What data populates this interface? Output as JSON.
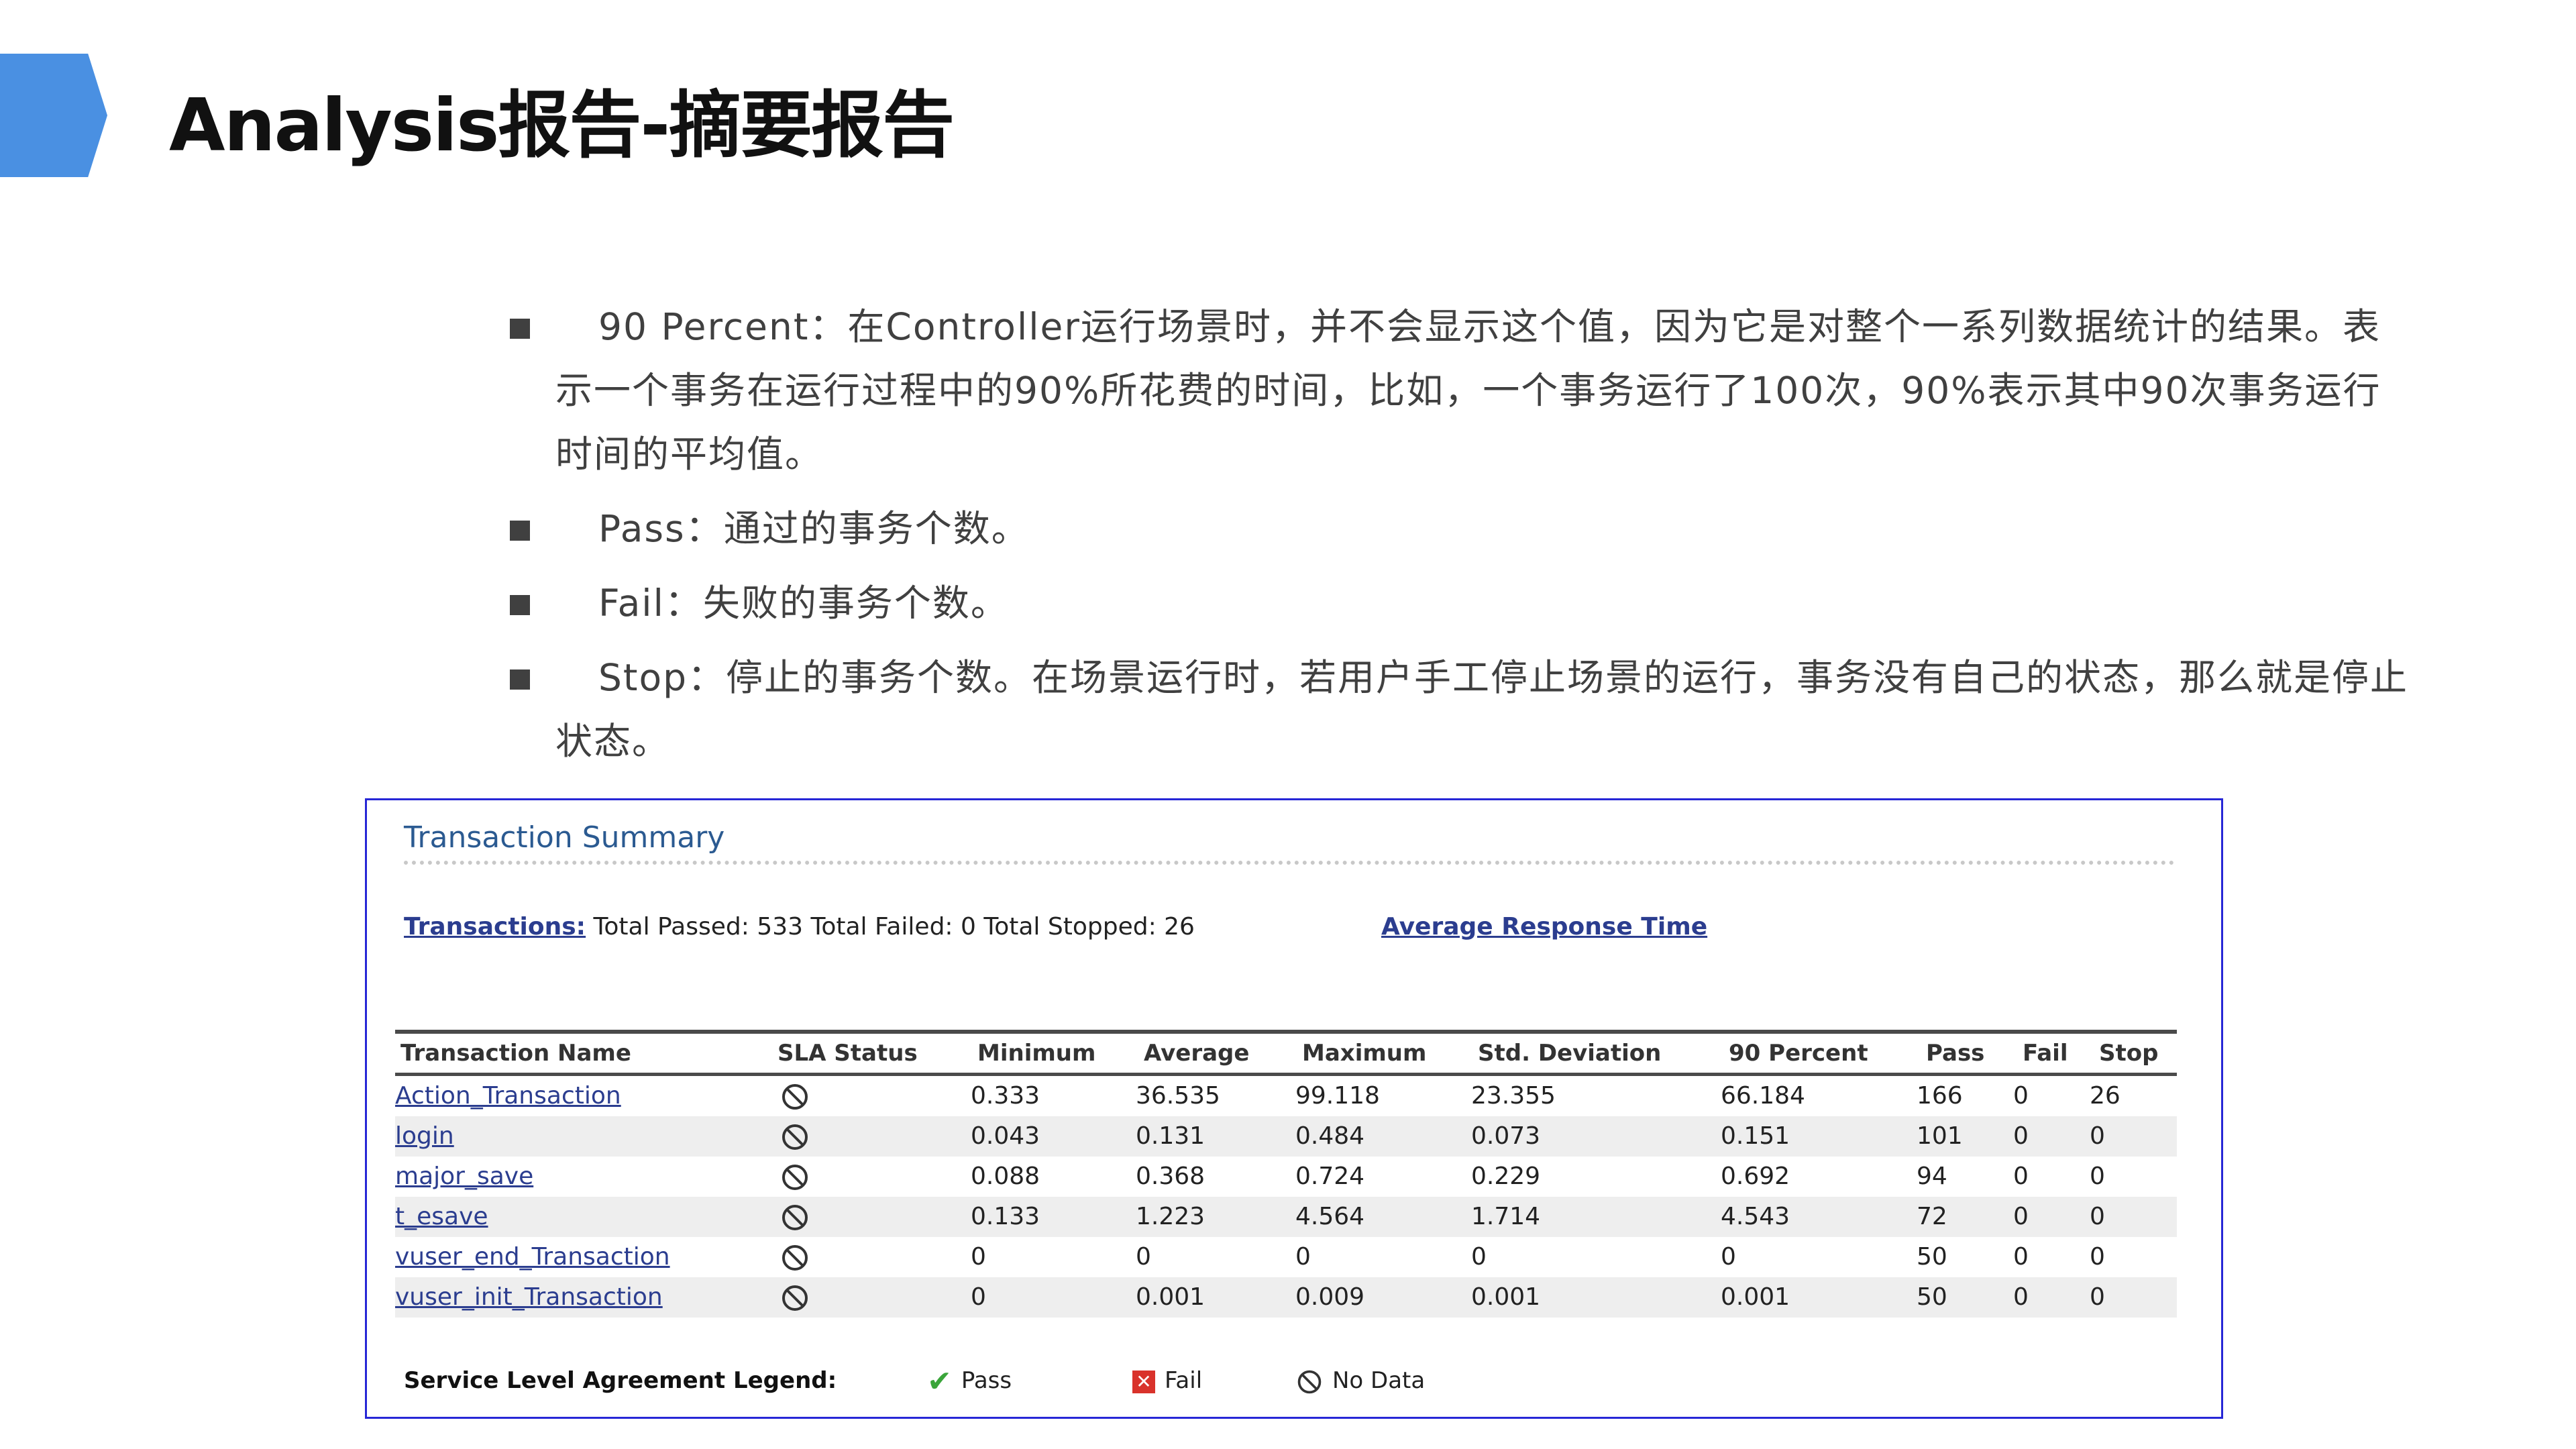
{
  "title": "Analysis报告-摘要报告",
  "bullets": [
    {
      "label": "90 Percent",
      "text": "：在Controller运行场景时，并不会显示这个值，因为它是对整个一系列数据统计的结果。表示一个事务在运行过程中的90%所花费的时间，比如，一个事务运行了100次，90%表示其中90次事务运行时间的平均值。"
    },
    {
      "label": "Pass",
      "text": "：通过的事务个数。"
    },
    {
      "label": "Fail",
      "text": "：失败的事务个数。"
    },
    {
      "label": "Stop",
      "text": "：停止的事务个数。在场景运行时，若用户手工停止场景的运行，事务没有自己的状态，那么就是停止状态。"
    }
  ],
  "panel": {
    "title": "Transaction Summary",
    "transactions_link": "Transactions:",
    "summary_text": "Total Passed: 533 Total Failed: 0 Total Stopped: 26",
    "avg_link": "Average Response Time",
    "headers": {
      "name": "Transaction Name",
      "sla": "SLA Status",
      "min": "Minimum",
      "avg": "Average",
      "max": "Maximum",
      "std": "Std. Deviation",
      "p90": "90 Percent",
      "pass": "Pass",
      "fail": "Fail",
      "stop": "Stop"
    },
    "rows": [
      {
        "name": "Action_Transaction",
        "min": "0.333",
        "avg": "36.535",
        "max": "99.118",
        "std": "23.355",
        "p90": "66.184",
        "pass": "166",
        "fail": "0",
        "stop": "26"
      },
      {
        "name": "login",
        "min": "0.043",
        "avg": "0.131",
        "max": "0.484",
        "std": "0.073",
        "p90": "0.151",
        "pass": "101",
        "fail": "0",
        "stop": "0"
      },
      {
        "name": "major_save",
        "min": "0.088",
        "avg": "0.368",
        "max": "0.724",
        "std": "0.229",
        "p90": "0.692",
        "pass": "94",
        "fail": "0",
        "stop": "0"
      },
      {
        "name": "t_esave",
        "min": "0.133",
        "avg": "1.223",
        "max": "4.564",
        "std": "1.714",
        "p90": "4.543",
        "pass": "72",
        "fail": "0",
        "stop": "0"
      },
      {
        "name": "vuser_end_Transaction",
        "min": "0",
        "avg": "0",
        "max": "0",
        "std": "0",
        "p90": "0",
        "pass": "50",
        "fail": "0",
        "stop": "0"
      },
      {
        "name": "vuser_init_Transaction",
        "min": "0",
        "avg": "0.001",
        "max": "0.009",
        "std": "0.001",
        "p90": "0.001",
        "pass": "50",
        "fail": "0",
        "stop": "0"
      }
    ],
    "legend": {
      "title": "Service Level Agreement Legend:",
      "pass": "Pass",
      "fail": "Fail",
      "no_data": "No Data"
    }
  },
  "colors": {
    "accent": "#4a90e2",
    "link": "#2b3d8f",
    "panel_border": "#2727d6"
  }
}
